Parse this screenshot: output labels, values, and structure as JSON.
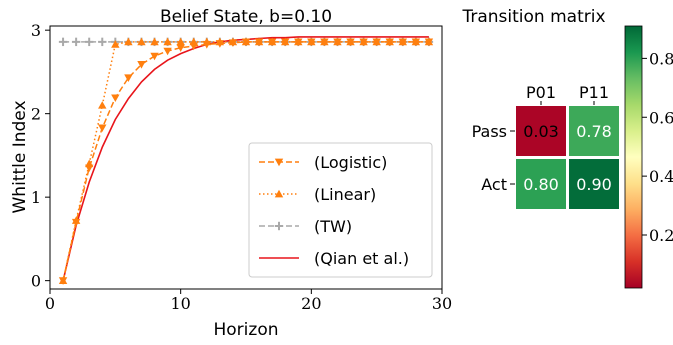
{
  "chart_data": [
    {
      "type": "line",
      "title": "Belief State, b=0.10",
      "xlabel": "Horizon",
      "ylabel": "Whittle Index",
      "xlim": [
        0,
        30
      ],
      "ylim": [
        -0.1,
        3.05
      ],
      "xticks": [
        0,
        10,
        20,
        30
      ],
      "yticks": [
        0,
        1,
        2,
        3
      ],
      "grid": false,
      "legend_position": "lower-right",
      "series": [
        {
          "name": "(Logistic)",
          "color": "#ff7f0e",
          "style": "dashed",
          "marker": "triangle-down",
          "x": [
            1,
            2,
            3,
            4,
            5,
            6,
            7,
            8,
            9,
            10,
            11,
            12,
            13,
            14,
            15,
            16,
            17,
            18,
            19,
            20,
            21,
            22,
            23,
            24,
            25,
            26,
            27,
            28,
            29
          ],
          "y": [
            0.0,
            0.7,
            1.35,
            1.83,
            2.19,
            2.43,
            2.59,
            2.69,
            2.75,
            2.79,
            2.81,
            2.83,
            2.84,
            2.85,
            2.86,
            2.86,
            2.86,
            2.86,
            2.86,
            2.86,
            2.86,
            2.86,
            2.86,
            2.86,
            2.86,
            2.86,
            2.86,
            2.86,
            2.86
          ]
        },
        {
          "name": "(Linear)",
          "color": "#ff7f0e",
          "style": "dotted",
          "marker": "triangle-up",
          "x": [
            1,
            2,
            3,
            4,
            5,
            6,
            7,
            8,
            9,
            10,
            11,
            12,
            13,
            14,
            15,
            16,
            17,
            18,
            19,
            20,
            21,
            22,
            23,
            24,
            25,
            26,
            27,
            28,
            29
          ],
          "y": [
            0.0,
            0.72,
            1.4,
            2.1,
            2.83,
            2.86,
            2.86,
            2.86,
            2.86,
            2.86,
            2.86,
            2.86,
            2.86,
            2.86,
            2.86,
            2.86,
            2.86,
            2.86,
            2.86,
            2.86,
            2.86,
            2.86,
            2.86,
            2.86,
            2.86,
            2.86,
            2.86,
            2.86,
            2.86
          ]
        },
        {
          "name": "(TW)",
          "color": "#a9a9a9",
          "style": "dashed",
          "marker": "plus",
          "x": [
            1,
            2,
            3,
            4,
            5,
            6,
            7,
            8,
            9,
            10,
            11,
            12,
            13,
            14,
            15,
            16,
            17,
            18,
            19,
            20,
            21,
            22,
            23,
            24,
            25,
            26,
            27,
            28,
            29
          ],
          "y": [
            2.86,
            2.86,
            2.86,
            2.86,
            2.86,
            2.86,
            2.86,
            2.86,
            2.86,
            2.86,
            2.86,
            2.86,
            2.86,
            2.86,
            2.86,
            2.86,
            2.86,
            2.86,
            2.86,
            2.86,
            2.86,
            2.86,
            2.86,
            2.86,
            2.86,
            2.86,
            2.86,
            2.86,
            2.86
          ]
        },
        {
          "name": "(Qian et al.)",
          "color": "#e8151b",
          "style": "solid",
          "marker": "none",
          "x": [
            1,
            2,
            3,
            4,
            5,
            6,
            7,
            8,
            9,
            10,
            11,
            12,
            13,
            14,
            15,
            16,
            17,
            18,
            19,
            20,
            21,
            22,
            23,
            24,
            25,
            26,
            27,
            28,
            29
          ],
          "y": [
            0.0,
            0.66,
            1.18,
            1.6,
            1.93,
            2.18,
            2.38,
            2.53,
            2.64,
            2.72,
            2.78,
            2.83,
            2.86,
            2.88,
            2.89,
            2.9,
            2.91,
            2.91,
            2.92,
            2.92,
            2.92,
            2.92,
            2.92,
            2.92,
            2.92,
            2.92,
            2.92,
            2.92,
            2.92
          ]
        }
      ]
    },
    {
      "type": "heatmap",
      "title": "Transition matrix",
      "columns": [
        "P01",
        "P11"
      ],
      "rows": [
        "Pass",
        "Act"
      ],
      "values": [
        [
          0.03,
          0.78
        ],
        [
          0.8,
          0.9
        ]
      ],
      "cell_labels": [
        [
          "0.03",
          "0.78"
        ],
        [
          "0.80",
          "0.90"
        ]
      ],
      "colormap": "RdYlGn",
      "colorbar": {
        "range": [
          0.02,
          0.91
        ],
        "ticks": [
          0.2,
          0.4,
          0.6,
          0.8
        ],
        "tick_labels": [
          "0.2",
          "0.4",
          "0.6",
          "0.8"
        ]
      }
    }
  ]
}
